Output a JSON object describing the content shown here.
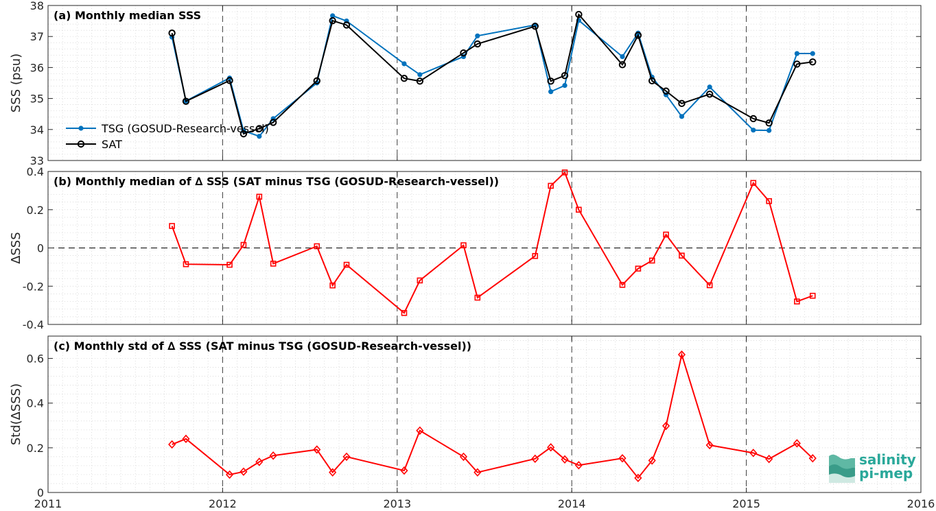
{
  "chart_data": [
    {
      "type": "line",
      "title": "(a) Monthly median SSS",
      "ylabel": "SSS (psu)",
      "xlim": [
        2011,
        2016
      ],
      "ylim": [
        33,
        38
      ],
      "yticks": [
        33,
        34,
        35,
        36,
        37,
        38
      ],
      "grid": true,
      "legend": "bottom-left",
      "series": [
        {
          "name": "TSG (GOSUD-Research-vessel)",
          "color": "#0072bd",
          "marker": "dot",
          "x": [
            2011.71,
            2011.79,
            2012.04,
            2012.12,
            2012.21,
            2012.29,
            2012.54,
            2012.63,
            2012.71,
            2013.04,
            2013.13,
            2013.38,
            2013.46,
            2013.79,
            2013.88,
            2013.96,
            2014.04,
            2014.29,
            2014.38,
            2014.46,
            2014.54,
            2014.63,
            2014.79,
            2015.04,
            2015.13,
            2015.29,
            2015.38
          ],
          "y": [
            36.98,
            34.92,
            35.66,
            33.96,
            33.78,
            34.35,
            35.5,
            37.67,
            37.5,
            36.12,
            35.77,
            36.35,
            37.02,
            37.37,
            35.22,
            35.42,
            37.52,
            36.35,
            37.11,
            35.69,
            35.12,
            34.42,
            35.37,
            33.98,
            33.97,
            36.45,
            36.45
          ]
        },
        {
          "name": "SAT",
          "color": "#000000",
          "marker": "circle",
          "x": [
            2011.71,
            2011.79,
            2012.04,
            2012.12,
            2012.21,
            2012.29,
            2012.54,
            2012.63,
            2012.71,
            2013.04,
            2013.13,
            2013.38,
            2013.46,
            2013.79,
            2013.88,
            2013.96,
            2014.04,
            2014.29,
            2014.38,
            2014.46,
            2014.54,
            2014.63,
            2014.79,
            2015.04,
            2015.13,
            2015.29,
            2015.38
          ],
          "y": [
            37.11,
            34.91,
            35.58,
            33.86,
            34.03,
            34.23,
            35.57,
            37.51,
            37.37,
            35.65,
            35.56,
            36.47,
            36.76,
            37.33,
            35.56,
            35.74,
            37.71,
            36.09,
            37.04,
            35.57,
            35.24,
            34.84,
            35.14,
            34.35,
            34.21,
            36.11,
            36.18
          ]
        }
      ]
    },
    {
      "type": "line",
      "title": "(b) Monthly median of ∆ SSS (SAT minus TSG (GOSUD-Research-vessel))",
      "ylabel": "∆SSS",
      "xlim": [
        2011,
        2016
      ],
      "ylim": [
        -0.4,
        0.4
      ],
      "yticks": [
        -0.4,
        -0.2,
        0,
        0.2,
        0.4
      ],
      "zero_line": true,
      "grid": true,
      "series": [
        {
          "color": "#ff0000",
          "marker": "square",
          "x": [
            2011.71,
            2011.79,
            2012.04,
            2012.12,
            2012.21,
            2012.29,
            2012.54,
            2012.63,
            2012.71,
            2013.04,
            2013.13,
            2013.38,
            2013.46,
            2013.79,
            2013.88,
            2013.96,
            2014.04,
            2014.29,
            2014.38,
            2014.46,
            2014.54,
            2014.63,
            2014.79,
            2015.04,
            2015.13,
            2015.29,
            2015.38
          ],
          "y": [
            0.115,
            -0.085,
            -0.088,
            0.016,
            0.268,
            -0.082,
            0.009,
            -0.196,
            -0.088,
            -0.34,
            -0.17,
            0.014,
            -0.26,
            -0.042,
            0.325,
            0.395,
            0.2,
            -0.193,
            -0.108,
            -0.066,
            0.07,
            -0.04,
            -0.195,
            0.34,
            0.245,
            -0.28,
            -0.25
          ]
        }
      ]
    },
    {
      "type": "line",
      "title": "(c) Monthly std of ∆ SSS (SAT minus TSG (GOSUD-Research-vessel))",
      "ylabel": "Std(∆SSS)",
      "xlabel": "",
      "xlim": [
        2011,
        2016
      ],
      "xticks": [
        "2011",
        "2012",
        "2013",
        "2014",
        "2015",
        "2016"
      ],
      "ylim": [
        0,
        0.7
      ],
      "yticks": [
        0,
        0.2,
        0.4,
        0.6
      ],
      "grid": true,
      "series": [
        {
          "color": "#ff0000",
          "marker": "diamond",
          "x": [
            2011.71,
            2011.79,
            2012.04,
            2012.12,
            2012.21,
            2012.29,
            2012.54,
            2012.63,
            2012.71,
            2013.04,
            2013.13,
            2013.38,
            2013.46,
            2013.79,
            2013.88,
            2013.96,
            2014.04,
            2014.29,
            2014.38,
            2014.46,
            2014.54,
            2014.63,
            2014.79,
            2015.04,
            2015.13,
            2015.29,
            2015.38
          ],
          "y": [
            0.215,
            0.24,
            0.08,
            0.093,
            0.137,
            0.165,
            0.192,
            0.09,
            0.16,
            0.098,
            0.277,
            0.16,
            0.09,
            0.151,
            0.202,
            0.148,
            0.122,
            0.153,
            0.065,
            0.143,
            0.298,
            0.617,
            0.212,
            0.177,
            0.15,
            0.22,
            0.153
          ]
        }
      ]
    }
  ],
  "logo": {
    "line1": "salinity",
    "line2": "pi-mep",
    "color": "#2aa89a"
  }
}
